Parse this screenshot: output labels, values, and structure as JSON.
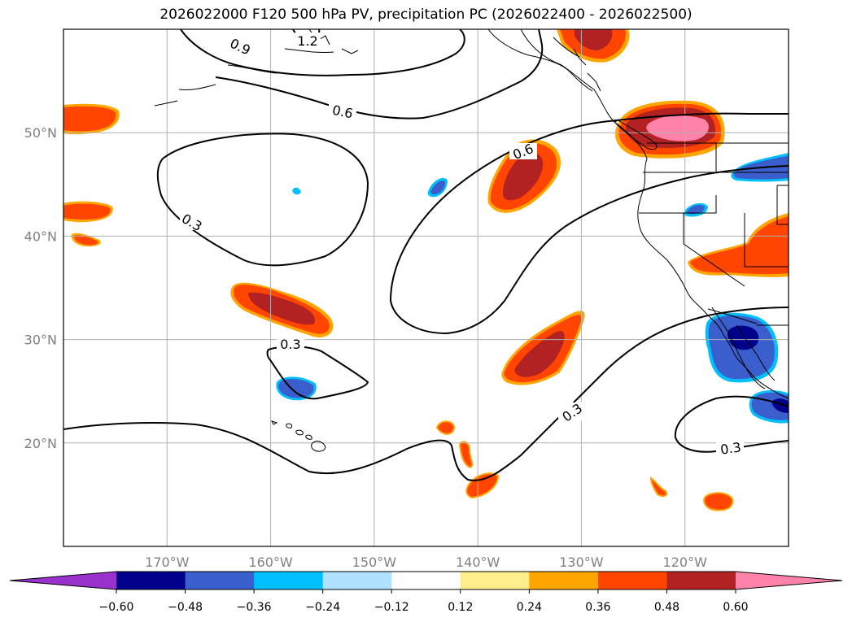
{
  "chart_data": {
    "type": "map-contour",
    "title": "2026022000 F120 500 hPa PV, precipitation PC (2026022400 - 2026022500)",
    "lon_range": [
      -180,
      -110
    ],
    "lat_range": [
      10,
      60
    ],
    "lon_ticks": [
      -170,
      -160,
      -150,
      -140,
      -130,
      -120
    ],
    "lon_tick_labels": [
      "170°W",
      "160°W",
      "150°W",
      "140°W",
      "130°W",
      "120°W"
    ],
    "lat_ticks": [
      20,
      30,
      40,
      50
    ],
    "lat_tick_labels": [
      "20°N",
      "30°N",
      "40°N",
      "50°N"
    ],
    "pv_contour_levels": [
      0.3,
      0.6,
      0.9,
      1.2
    ],
    "pv_contour_labels": [
      "0.3",
      "0.3",
      "0.3",
      "0.3",
      "0.6",
      "0.6",
      "0.9",
      "1.2"
    ],
    "colorbar": {
      "boundaries": [
        -0.6,
        -0.48,
        -0.36,
        -0.24,
        -0.12,
        0.12,
        0.24,
        0.36,
        0.48,
        0.6
      ],
      "tick_labels": [
        "−0.60",
        "−0.48",
        "−0.36",
        "−0.24",
        "−0.12",
        "0.12",
        "0.24",
        "0.36",
        "0.48",
        "0.60"
      ],
      "colors": [
        "#9932cc",
        "#00008b",
        "#3a5fcd",
        "#00bfff",
        "#b0e2ff",
        "#ffffff",
        "#ffec8b",
        "#ffa500",
        "#ff4500",
        "#b22222",
        "#ff82ab"
      ],
      "extend": "both"
    },
    "colors": {
      "grid": "#b0b0b0",
      "tick_label": "#808080"
    }
  }
}
